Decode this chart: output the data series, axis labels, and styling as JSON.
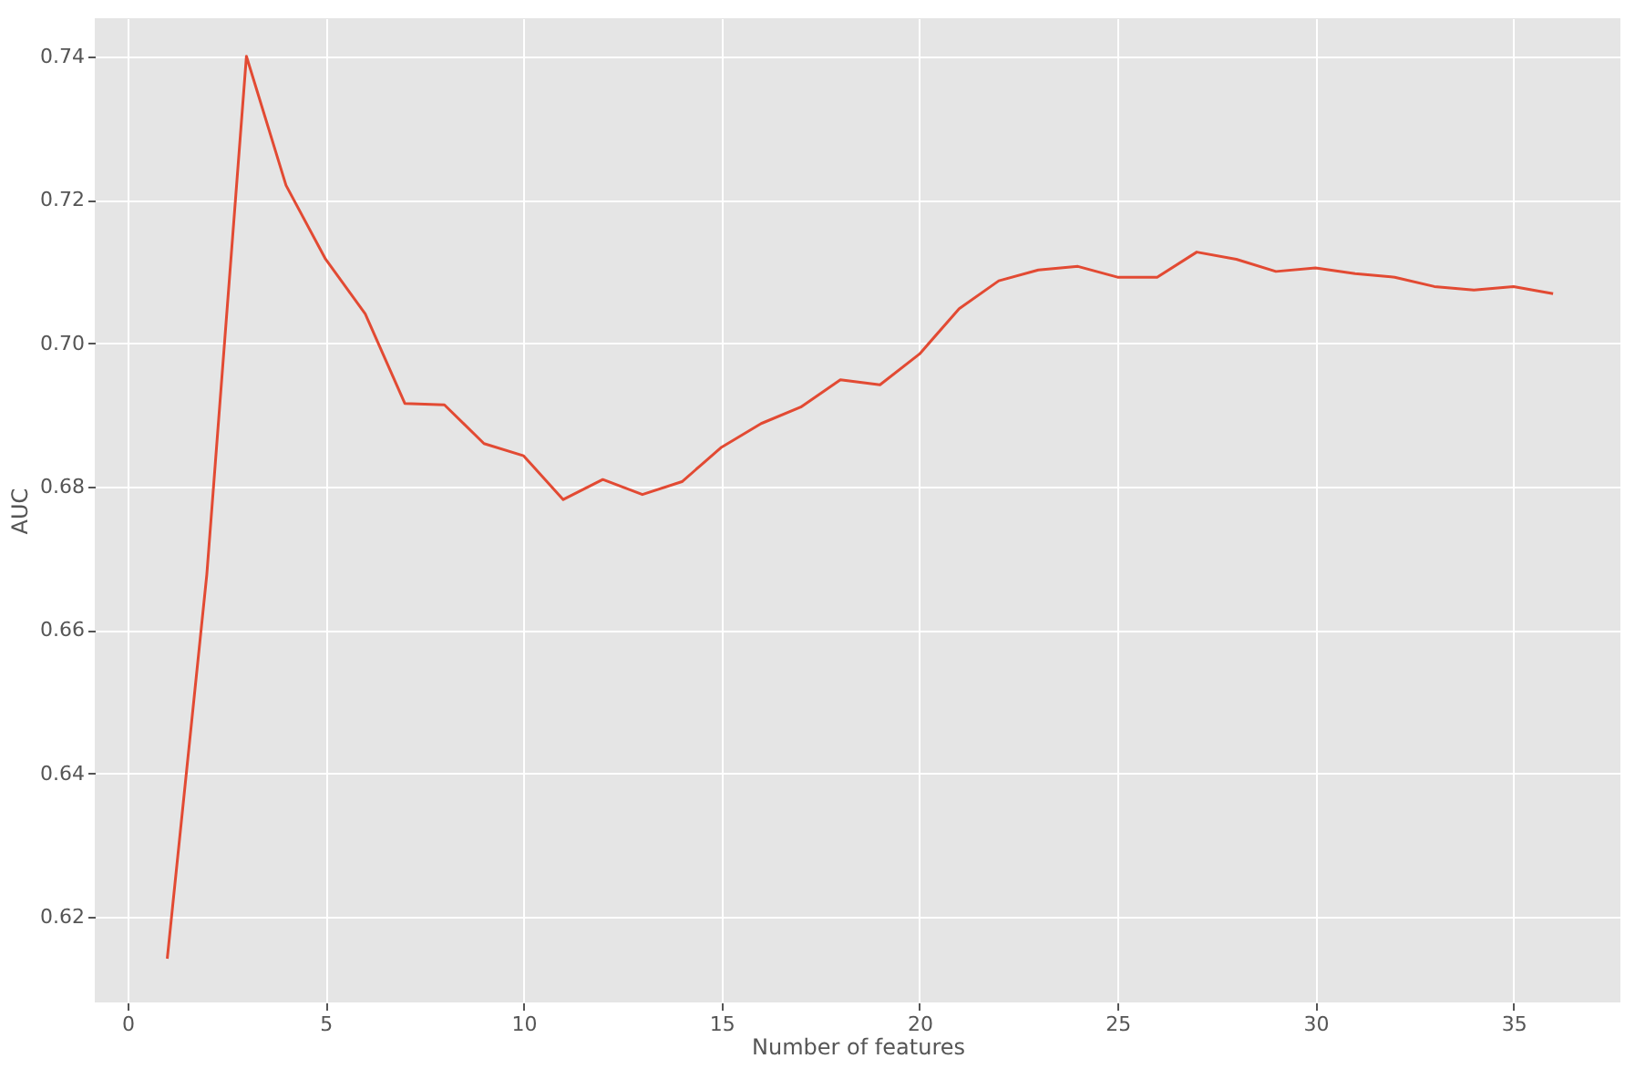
{
  "chart_data": {
    "type": "line",
    "xlabel": "Number of features",
    "ylabel": "AUC",
    "x": [
      1,
      2,
      3,
      4,
      5,
      6,
      7,
      8,
      9,
      10,
      11,
      12,
      13,
      14,
      15,
      16,
      17,
      18,
      19,
      20,
      21,
      22,
      23,
      24,
      25,
      26,
      27,
      28,
      29,
      30,
      31,
      32,
      33,
      34,
      35,
      36
    ],
    "series": [
      {
        "color": "#e24a33",
        "values": [
          0.6142,
          0.6678,
          0.74,
          0.722,
          0.7117,
          0.7041,
          0.6916,
          0.6914,
          0.686,
          0.6843,
          0.6782,
          0.681,
          0.6789,
          0.6807,
          0.6855,
          0.6888,
          0.6911,
          0.6949,
          0.6942,
          0.6985,
          0.7048,
          0.7087,
          0.7102,
          0.7107,
          0.7092,
          0.7092,
          0.7127,
          0.7117,
          0.71,
          0.7105,
          0.7097,
          0.7092,
          0.7079,
          0.7074,
          0.7079,
          0.7069
        ]
      }
    ],
    "xlim": [
      -0.83,
      37.7
    ],
    "xticks": [
      0,
      5,
      10,
      15,
      20,
      25,
      30,
      35
    ],
    "ylim": [
      0.6081,
      0.7453
    ],
    "yticks": [
      {
        "value": 0.62,
        "label": "0.62"
      },
      {
        "value": 0.64,
        "label": "0.64"
      },
      {
        "value": 0.66,
        "label": "0.66"
      },
      {
        "value": 0.68,
        "label": "0.68"
      },
      {
        "value": 0.7,
        "label": "0.70"
      },
      {
        "value": 0.72,
        "label": "0.72"
      },
      {
        "value": 0.74,
        "label": "0.74"
      }
    ],
    "grid": true,
    "marker": "none",
    "line_style": "solid"
  }
}
